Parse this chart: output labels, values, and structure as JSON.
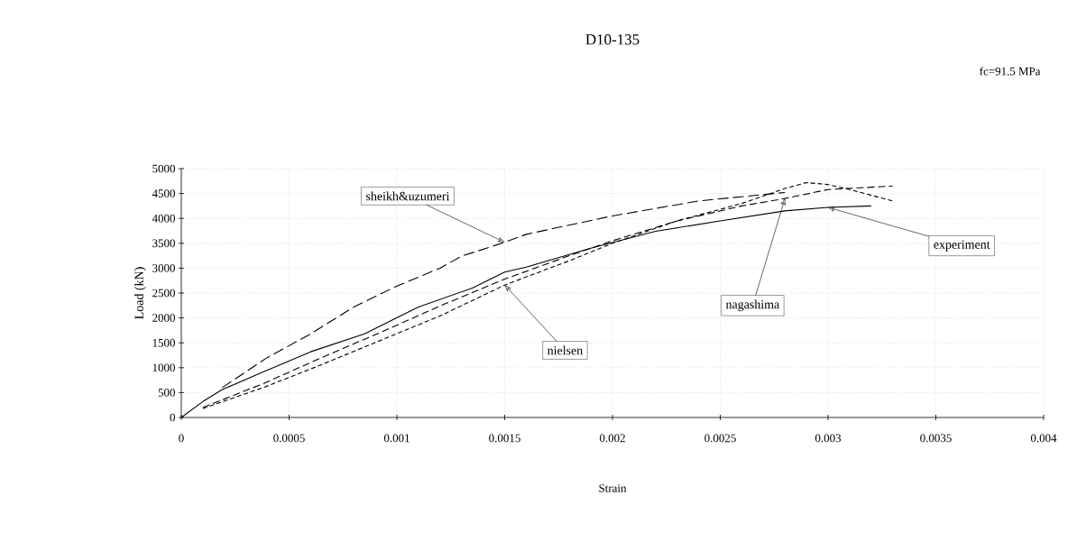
{
  "chart_data": {
    "type": "line",
    "title": "D10-135",
    "xlabel": "Strain",
    "ylabel": "Load  (kN)",
    "annotations": [
      "fc=91.5 MPa"
    ],
    "xlim": [
      0,
      0.004
    ],
    "ylim": [
      0,
      5000
    ],
    "xticks": [
      0,
      0.0005,
      0.001,
      0.0015,
      0.002,
      0.0025,
      0.003,
      0.0035,
      0.004
    ],
    "yticks": [
      0,
      500,
      1000,
      1500,
      2000,
      2500,
      3000,
      3500,
      4000,
      4500,
      5000
    ],
    "grid": true,
    "legend": false,
    "marker": "none",
    "series": [
      {
        "name": "sheikh&uzumeri",
        "color": "#000000",
        "line_style": "dashed",
        "x": [
          0.00019,
          0.00039,
          0.0006,
          0.0008,
          0.001,
          0.0012,
          0.0013,
          0.0015,
          0.0016,
          0.002,
          0.0024,
          0.0028
        ],
        "values": [
          600,
          1180,
          1680,
          2220,
          2640,
          3000,
          3240,
          3520,
          3680,
          4050,
          4350,
          4520
        ]
      },
      {
        "name": "nielsen",
        "color": "#000000",
        "line_style": "dashed",
        "x": [
          0.0001,
          0.00038,
          0.00065,
          0.00093,
          0.0012,
          0.0015,
          0.0018,
          0.002,
          0.0023,
          0.0026,
          0.0028,
          0.0029,
          0.003,
          0.0031,
          0.0033
        ],
        "values": [
          180,
          600,
          1060,
          1560,
          2040,
          2660,
          3150,
          3500,
          3950,
          4300,
          4600,
          4720,
          4680,
          4580,
          4350
        ]
      },
      {
        "name": "nagashima",
        "color": "#000000",
        "line_style": "dashed",
        "x": [
          0.0001,
          0.00038,
          0.00065,
          0.00093,
          0.0012,
          0.0015,
          0.0018,
          0.002,
          0.0023,
          0.0026,
          0.0028,
          0.003,
          0.0033
        ],
        "values": [
          200,
          680,
          1200,
          1720,
          2240,
          2780,
          3250,
          3550,
          3950,
          4250,
          4400,
          4580,
          4650
        ]
      },
      {
        "name": "experiment",
        "color": "#000000",
        "line_style": "solid",
        "x": [
          0,
          0.0001,
          0.00019,
          0.00036,
          0.0006,
          0.00085,
          0.0011,
          0.00135,
          0.0015,
          0.0016,
          0.0019,
          0.0022,
          0.0025,
          0.0028,
          0.003,
          0.0032
        ],
        "values": [
          0,
          320,
          560,
          880,
          1320,
          1680,
          2220,
          2600,
          2920,
          3020,
          3400,
          3740,
          3950,
          4150,
          4220,
          4250
        ]
      }
    ]
  }
}
